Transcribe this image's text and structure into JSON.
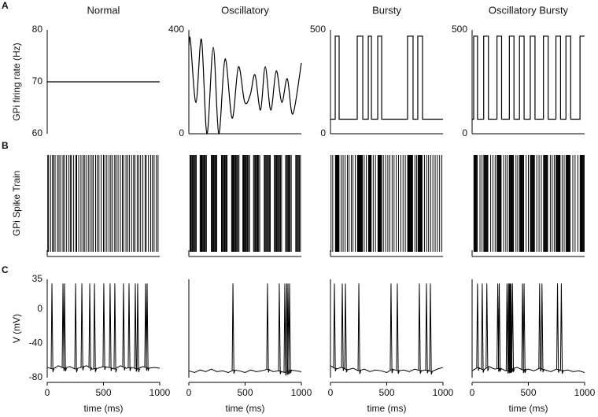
{
  "panel_labels": [
    "A",
    "B",
    "C"
  ],
  "chart_data": [
    {
      "type": "line",
      "title": "Normal",
      "y_label": "GPi firing rate (Hz)",
      "xlim": [
        0,
        1000
      ],
      "ylim": [
        60,
        80
      ],
      "yticks": [
        60,
        70,
        80
      ],
      "color": "#000000",
      "x": [
        0,
        1000
      ],
      "values": [
        70,
        70
      ]
    },
    {
      "type": "line",
      "title": "Oscillatory",
      "xlim": [
        0,
        1000
      ],
      "ylim": [
        0,
        400
      ],
      "yticks": [
        0,
        400
      ],
      "color": "#000000",
      "smooth": true,
      "x": [
        0,
        14,
        63,
        112,
        161,
        217,
        266,
        322,
        385,
        441,
        497,
        546,
        588,
        637,
        679,
        728,
        777,
        826,
        875,
        924,
        1000
      ],
      "values": [
        340,
        360,
        120,
        364,
        0,
        333,
        0,
        288,
        60,
        258,
        121,
        150,
        227,
        91,
        258,
        91,
        242,
        121,
        212,
        76,
        273
      ]
    },
    {
      "type": "line",
      "title": "Bursty",
      "xlim": [
        0,
        1000
      ],
      "ylim": [
        0,
        500
      ],
      "yticks": [
        0,
        500
      ],
      "color": "#000000",
      "x": [
        0,
        42,
        42,
        77,
        77,
        238,
        238,
        287,
        287,
        336,
        336,
        364,
        364,
        420,
        420,
        455,
        455,
        685,
        685,
        734,
        734,
        776,
        776,
        818,
        818,
        1000
      ],
      "values": [
        70,
        70,
        470,
        470,
        70,
        70,
        470,
        470,
        70,
        70,
        470,
        470,
        70,
        70,
        470,
        470,
        70,
        70,
        470,
        470,
        70,
        70,
        470,
        470,
        70,
        70
      ]
    },
    {
      "type": "line",
      "title": "Oscillatory Bursty",
      "xlim": [
        0,
        1000
      ],
      "ylim": [
        0,
        500
      ],
      "yticks": [
        0,
        500
      ],
      "color": "#000000",
      "x": [
        0,
        14,
        14,
        48,
        48,
        103,
        103,
        145,
        145,
        221,
        221,
        262,
        262,
        331,
        331,
        372,
        372,
        421,
        421,
        462,
        462,
        517,
        517,
        559,
        559,
        634,
        634,
        676,
        676,
        745,
        745,
        786,
        786,
        834,
        834,
        876,
        876,
        959,
        959,
        1000
      ],
      "values": [
        70,
        70,
        470,
        470,
        70,
        70,
        470,
        470,
        70,
        70,
        470,
        470,
        70,
        70,
        470,
        470,
        70,
        70,
        470,
        470,
        70,
        70,
        470,
        470,
        70,
        70,
        470,
        470,
        70,
        70,
        470,
        470,
        70,
        70,
        470,
        470,
        70,
        70,
        470,
        470
      ]
    },
    {
      "type": "raster",
      "y_label": "GPi Spike Train",
      "xlim": [
        0,
        1000
      ],
      "color": "#000000",
      "spike_times": [
        5,
        12,
        30,
        48,
        55,
        70,
        92,
        105,
        120,
        140,
        150,
        170,
        190,
        205,
        215,
        235,
        255,
        262,
        280,
        300,
        318,
        330,
        345,
        365,
        380,
        398,
        410,
        430,
        445,
        460,
        480,
        500,
        512,
        530,
        550,
        565,
        580,
        600,
        612,
        630,
        650,
        668,
        680,
        700,
        715,
        730,
        750,
        768,
        780,
        800,
        815,
        830,
        850,
        870,
        880,
        900,
        920,
        935,
        950,
        970,
        985
      ]
    },
    {
      "type": "raster",
      "xlim": [
        0,
        1000
      ],
      "color": "#000000",
      "spike_times": [
        10,
        16,
        22,
        30,
        36,
        44,
        50,
        58,
        66,
        100,
        106,
        112,
        118,
        126,
        134,
        140,
        148,
        156,
        200,
        206,
        214,
        220,
        226,
        234,
        240,
        248,
        290,
        296,
        302,
        310,
        318,
        324,
        332,
        340,
        380,
        386,
        392,
        398,
        406,
        414,
        420,
        428,
        436,
        446,
        480,
        486,
        494,
        500,
        508,
        516,
        522,
        530,
        540,
        575,
        582,
        590,
        596,
        604,
        612,
        620,
        630,
        670,
        676,
        684,
        692,
        700,
        708,
        716,
        724,
        760,
        768,
        776,
        782,
        790,
        798,
        806,
        814,
        824,
        860,
        868,
        876,
        884,
        892,
        900,
        910,
        950,
        958,
        966,
        974,
        982,
        992
      ]
    },
    {
      "type": "raster",
      "xlim": [
        0,
        1000
      ],
      "color": "#000000",
      "spike_times": [
        5,
        20,
        44,
        48,
        52,
        56,
        60,
        64,
        68,
        72,
        76,
        95,
        112,
        130,
        150,
        165,
        185,
        200,
        220,
        240,
        244,
        248,
        252,
        256,
        260,
        264,
        268,
        272,
        276,
        280,
        284,
        300,
        318,
        338,
        342,
        346,
        350,
        354,
        358,
        362,
        380,
        400,
        422,
        426,
        430,
        434,
        438,
        442,
        446,
        450,
        454,
        470,
        490,
        510,
        528,
        548,
        565,
        585,
        605,
        625,
        645,
        665,
        686,
        690,
        694,
        698,
        702,
        706,
        710,
        714,
        718,
        722,
        726,
        730,
        750,
        765,
        778,
        782,
        786,
        790,
        794,
        798,
        802,
        806,
        810,
        814,
        835,
        855,
        872,
        890,
        910,
        930,
        950,
        970,
        990
      ]
    },
    {
      "type": "raster",
      "xlim": [
        0,
        1000
      ],
      "color": "#000000",
      "spike_times": [
        16,
        22,
        28,
        34,
        40,
        46,
        70,
        88,
        104,
        110,
        116,
        122,
        128,
        134,
        140,
        165,
        185,
        205,
        222,
        228,
        234,
        240,
        246,
        252,
        258,
        280,
        300,
        318,
        332,
        338,
        344,
        350,
        356,
        362,
        368,
        390,
        405,
        422,
        428,
        434,
        440,
        446,
        452,
        458,
        480,
        500,
        518,
        524,
        530,
        536,
        542,
        548,
        554,
        575,
        595,
        615,
        635,
        641,
        647,
        653,
        659,
        665,
        671,
        695,
        712,
        730,
        746,
        752,
        758,
        764,
        770,
        776,
        782,
        800,
        818,
        835,
        841,
        847,
        853,
        859,
        865,
        871,
        895,
        915,
        940,
        960,
        966,
        972,
        978,
        984,
        990,
        996
      ]
    },
    {
      "type": "trace",
      "y_label": "V (mV)",
      "x_label": "time (ms)",
      "xlim": [
        0,
        1000
      ],
      "xticks": [
        0,
        500,
        1000
      ],
      "ylim": [
        -80,
        35
      ],
      "yticks": [
        -80,
        -40,
        0,
        35
      ],
      "color": "#000000",
      "x": [
        0,
        50,
        100,
        150,
        200,
        250,
        300,
        350,
        400,
        450,
        500,
        550,
        600,
        650,
        700,
        750,
        800,
        850,
        900,
        950,
        1000
      ],
      "values": [
        -68,
        -70,
        -66,
        -69,
        -67,
        -70,
        -68,
        -66,
        -70,
        -69,
        -67,
        -68,
        -70,
        -66,
        -69,
        -68,
        -70,
        -67,
        -69,
        -68,
        -69
      ],
      "spike_peak": 30,
      "spike_times": [
        42,
        140,
        154,
        252,
        308,
        378,
        420,
        503,
        559,
        601,
        678,
        727,
        783,
        804,
        874,
        888
      ]
    },
    {
      "type": "trace",
      "x_label": "time (ms)",
      "xlim": [
        0,
        1000
      ],
      "xticks": [
        0,
        500,
        1000
      ],
      "ylim": [
        -80,
        35
      ],
      "color": "#000000",
      "x": [
        0,
        50,
        100,
        150,
        200,
        250,
        300,
        350,
        400,
        450,
        500,
        550,
        600,
        650,
        700,
        750,
        800,
        850,
        900,
        950,
        1000
      ],
      "values": [
        -72,
        -74,
        -71,
        -73,
        -70,
        -73,
        -72,
        -74,
        -71,
        -72,
        -74,
        -71,
        -73,
        -72,
        -70,
        -73,
        -72,
        -74,
        -71,
        -72,
        -73
      ],
      "spike_peak": 30,
      "spike_times": [
        392,
        699,
        804,
        853,
        870,
        881,
        895
      ]
    },
    {
      "type": "trace",
      "x_label": "time (ms)",
      "xlim": [
        0,
        1000
      ],
      "xticks": [
        0,
        500,
        1000
      ],
      "ylim": [
        -80,
        35
      ],
      "color": "#000000",
      "x": [
        0,
        50,
        100,
        150,
        200,
        250,
        300,
        350,
        400,
        450,
        500,
        550,
        600,
        650,
        700,
        750,
        800,
        850,
        900,
        950,
        1000
      ],
      "values": [
        -66,
        -70,
        -68,
        -71,
        -69,
        -72,
        -70,
        -73,
        -71,
        -72,
        -74,
        -70,
        -72,
        -71,
        -73,
        -70,
        -72,
        -71,
        -73,
        -70,
        -68
      ],
      "spike_peak": 30,
      "spike_times": [
        35,
        105,
        133,
        252,
        538,
        594,
        790,
        853,
        888
      ]
    },
    {
      "type": "trace",
      "x_label": "time (ms)",
      "xlim": [
        0,
        1000
      ],
      "xticks": [
        0,
        500,
        1000
      ],
      "ylim": [
        -80,
        35
      ],
      "color": "#000000",
      "x": [
        0,
        50,
        100,
        150,
        200,
        250,
        300,
        350,
        400,
        450,
        500,
        550,
        600,
        650,
        700,
        750,
        800,
        850,
        900,
        950,
        1000
      ],
      "values": [
        -72,
        -68,
        -71,
        -67,
        -70,
        -69,
        -72,
        -70,
        -68,
        -71,
        -70,
        -72,
        -69,
        -71,
        -73,
        -70,
        -72,
        -71,
        -73,
        -72,
        -74
      ],
      "spike_peak": 30,
      "spike_times": [
        48,
        90,
        131,
        228,
        241,
        310,
        324,
        331,
        338,
        345,
        359,
        448,
        462,
        600,
        621,
        759,
        793
      ]
    }
  ]
}
